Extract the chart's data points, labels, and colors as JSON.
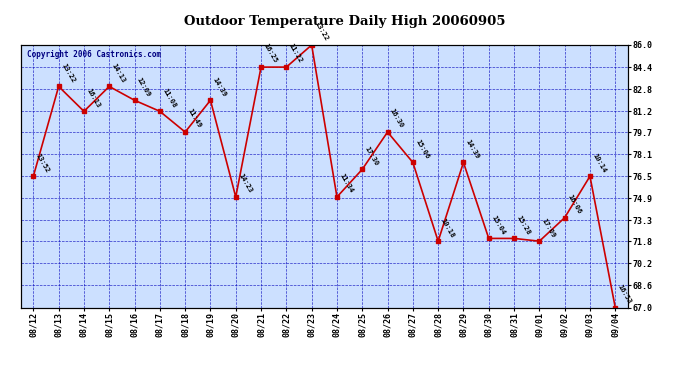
{
  "title": "Outdoor Temperature Daily High 20060905",
  "copyright": "Copyright 2006 Castronics.com",
  "dates": [
    "08/12",
    "08/13",
    "08/14",
    "08/15",
    "08/16",
    "08/17",
    "08/18",
    "08/19",
    "08/20",
    "08/21",
    "08/22",
    "08/23",
    "08/24",
    "08/25",
    "08/26",
    "08/27",
    "08/28",
    "08/29",
    "08/30",
    "08/31",
    "09/01",
    "09/02",
    "09/03",
    "09/04"
  ],
  "values": [
    76.5,
    83.0,
    81.2,
    83.0,
    82.0,
    81.2,
    79.7,
    82.0,
    75.0,
    84.4,
    84.4,
    86.0,
    75.0,
    77.0,
    79.7,
    77.5,
    71.8,
    77.5,
    72.0,
    72.0,
    71.8,
    73.5,
    76.5,
    67.0
  ],
  "times": [
    "13:52",
    "13:22",
    "16:13",
    "14:13",
    "12:09",
    "11:08",
    "11:49",
    "14:39",
    "14:23",
    "16:25",
    "11:22",
    "13:22",
    "11:34",
    "17:30",
    "16:30",
    "15:06",
    "10:18",
    "14:39",
    "15:04",
    "15:28",
    "17:09",
    "16:06",
    "10:14",
    "16:53"
  ],
  "line_color": "#cc0000",
  "marker_color": "#cc0000",
  "bg_color": "#cce0ff",
  "grid_color": "#0000bb",
  "title_color": "#000000",
  "copyright_color": "#000080",
  "ylim": [
    67.0,
    86.0
  ],
  "yticks": [
    67.0,
    68.6,
    70.2,
    71.8,
    73.3,
    74.9,
    76.5,
    78.1,
    79.7,
    81.2,
    82.8,
    84.4,
    86.0
  ]
}
